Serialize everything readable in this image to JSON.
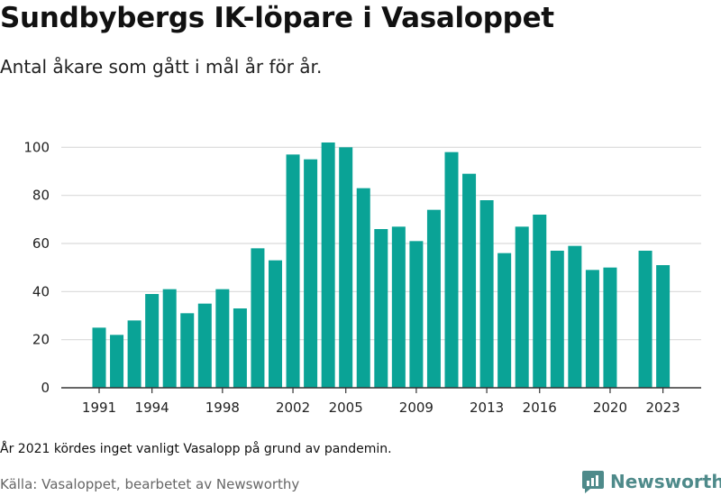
{
  "title": "Sundbybergs IK-löpare i Vasaloppet",
  "subtitle": "Antal åkare som gått i mål år för år.",
  "note": "År 2021 kördes inget vanligt Vasalopp på grund av pandemin.",
  "source": "Källa: Vasaloppet, bearbetet av Newsworthy",
  "logo_text": "Newsworthy",
  "colors": {
    "bar": "#0aa396",
    "grid": "#d9d9d9",
    "axis": "#333333",
    "logo": "#4e8a8a"
  },
  "chart_data": {
    "type": "bar",
    "categories": [
      "1991",
      "1992",
      "1993",
      "1994",
      "1995",
      "1996",
      "1997",
      "1998",
      "1999",
      "2000",
      "2001",
      "2002",
      "2003",
      "2004",
      "2005",
      "2006",
      "2007",
      "2008",
      "2009",
      "2010",
      "2011",
      "2012",
      "2013",
      "2014",
      "2015",
      "2016",
      "2017",
      "2018",
      "2019",
      "2020",
      "2021",
      "2022",
      "2023"
    ],
    "values": [
      25,
      22,
      28,
      39,
      41,
      31,
      35,
      41,
      33,
      58,
      53,
      97,
      95,
      102,
      100,
      83,
      66,
      67,
      61,
      74,
      98,
      89,
      78,
      56,
      67,
      72,
      57,
      59,
      49,
      50,
      null,
      57,
      51
    ],
    "x_tick_labels": [
      "1991",
      "1994",
      "1998",
      "2002",
      "2005",
      "2009",
      "2013",
      "2016",
      "2020",
      "2023"
    ],
    "y_ticks": [
      0,
      20,
      40,
      60,
      80,
      100
    ],
    "ylim": [
      0,
      105
    ],
    "grid": true,
    "xlabel": "",
    "ylabel": ""
  }
}
